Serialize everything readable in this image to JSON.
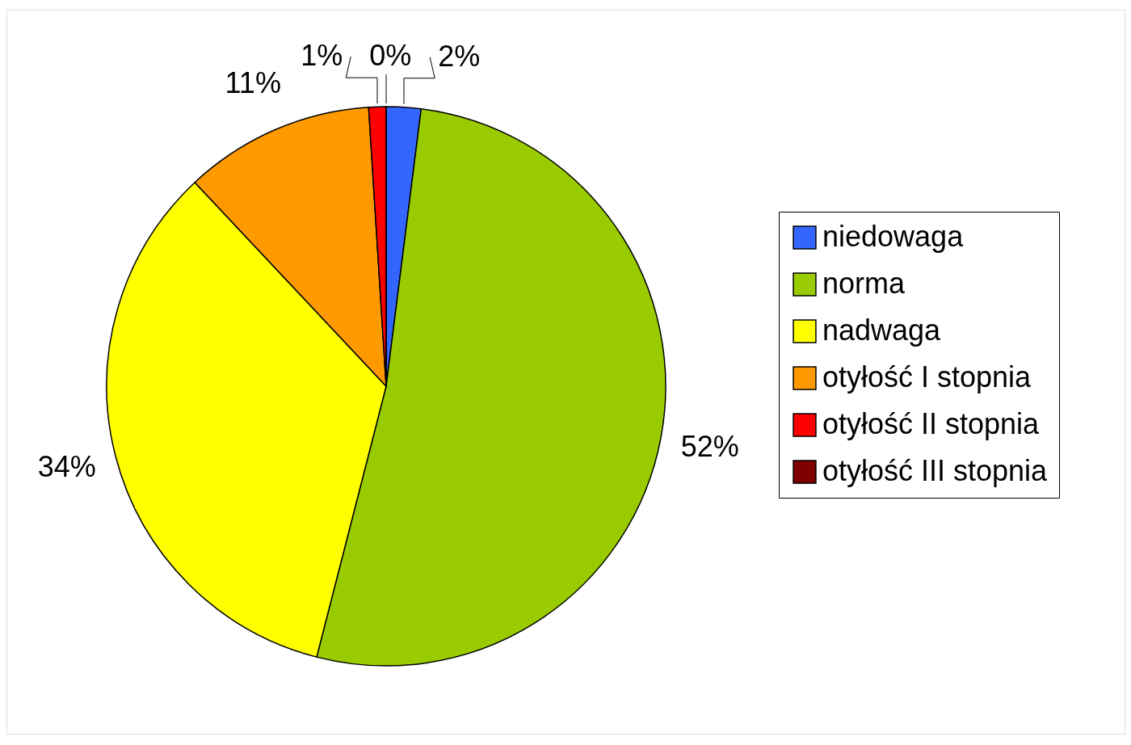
{
  "chart_data": {
    "type": "pie",
    "categories": [
      "niedowaga",
      "norma",
      "nadwaga",
      "otyłość I stopnia",
      "otyłość II stopnia",
      "otyłość III stopnia"
    ],
    "values": [
      2,
      52,
      34,
      11,
      1,
      0
    ],
    "colors": [
      "#3366ff",
      "#99cc00",
      "#ffff00",
      "#ff9900",
      "#ff0000",
      "#800000"
    ],
    "value_labels": [
      "2%",
      "52%",
      "34%",
      "11%",
      "1%",
      "0%"
    ],
    "legend": "right"
  }
}
